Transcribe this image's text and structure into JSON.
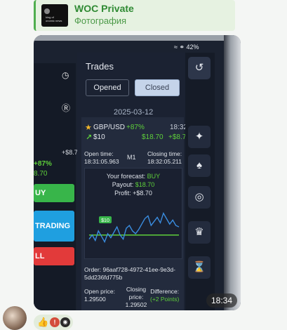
{
  "reply": {
    "title": "WOC Private",
    "subtitle": "Фотография",
    "thumb_line1": "king of",
    "thumb_line2": "onomic news"
  },
  "status": {
    "text": "42%"
  },
  "left_panel": {
    "profit_pct": "+87%",
    "amount": "8.70",
    "amount2": "+$8.70",
    "buy": "UY",
    "trading": "TRADING",
    "sell": "LL"
  },
  "trades": {
    "title": "Trades",
    "tab_opened": "Opened",
    "tab_closed": "Closed",
    "date": "2025-03-12",
    "trade": {
      "pair": "GBP/USD",
      "profit_pct": "+87%",
      "time": "18:32",
      "amount": "$10",
      "payout": "$18.70",
      "profit": "+$8.70",
      "open_time_label": "Open time:",
      "open_time": "18:31:05.963",
      "timeframe": "M1",
      "close_time_label": "Closing time:",
      "close_time": "18:32:05.211",
      "forecast_label": "Your forecast:",
      "forecast_value": "BUY",
      "payout_label": "Payout:",
      "payout_value": "$18.70",
      "profit_label": "Profit:",
      "profit_value": "+$8.70",
      "chart_tag": "$10",
      "order_label": "Order:",
      "order_id": "96aaf728-4972-41ee-9e3d-5dd236fd775b",
      "open_price_label": "Open price:",
      "open_price": "1.29500",
      "closing_price_label": "Closing price:",
      "closing_price": "1.29502",
      "difference_label": "Difference:",
      "difference_value": "(+2 Points)"
    }
  },
  "message": {
    "time": "18:34",
    "reaction_count": "!"
  },
  "colors": {
    "accent_green": "#5ecf3a",
    "buy": "#38b54a",
    "sell": "#e23a3a",
    "trading": "#1f9fe0"
  },
  "chart_data": {
    "type": "line",
    "title": "",
    "xlabel": "",
    "ylabel": "",
    "x": [
      0,
      1,
      2,
      3,
      4,
      5,
      6,
      7,
      8,
      9,
      10,
      11,
      12,
      13,
      14,
      15,
      16,
      17,
      18,
      19,
      20,
      21,
      22,
      23,
      24,
      25,
      26,
      27,
      28,
      29
    ],
    "values": [
      40,
      46,
      38,
      52,
      44,
      36,
      48,
      42,
      50,
      58,
      46,
      40,
      56,
      60,
      52,
      48,
      54,
      62,
      70,
      74,
      60,
      66,
      72,
      64,
      78,
      70,
      62,
      68,
      60,
      58
    ],
    "open_level": 46,
    "ylim": [
      20,
      90
    ]
  }
}
